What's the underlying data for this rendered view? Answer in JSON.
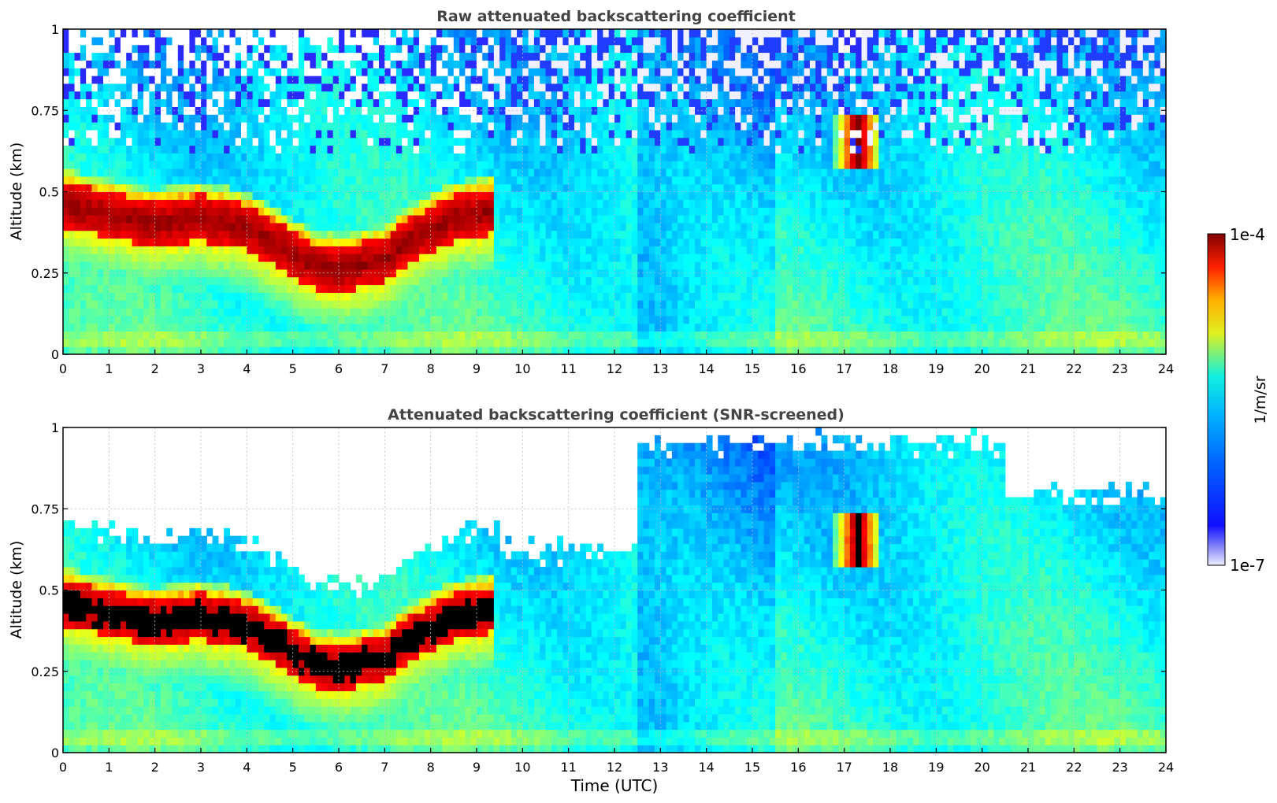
{
  "chart_data": [
    {
      "type": "heatmap",
      "title": "Raw attenuated backscattering coefficient",
      "xlabel": "",
      "ylabel": "Altitude (km)",
      "xlim": [
        0,
        24
      ],
      "ylim": [
        0,
        1
      ],
      "xticks": [
        "0",
        "1",
        "2",
        "3",
        "4",
        "5",
        "6",
        "7",
        "8",
        "9",
        "10",
        "11",
        "12",
        "13",
        "14",
        "15",
        "16",
        "17",
        "18",
        "19",
        "20",
        "21",
        "22",
        "23",
        "24"
      ],
      "yticks": [
        "0",
        "0.25",
        "0.5",
        "0.75",
        "1"
      ],
      "grid": true,
      "features": {
        "boundary_layer_top_km": [
          [
            0,
            0.53
          ],
          [
            1,
            0.5
          ],
          [
            2,
            0.47
          ],
          [
            3,
            0.49
          ],
          [
            4,
            0.46
          ],
          [
            5,
            0.38
          ],
          [
            5.5,
            0.34
          ],
          [
            6,
            0.33
          ],
          [
            7,
            0.36
          ],
          [
            7.5,
            0.42
          ],
          [
            8,
            0.45
          ],
          [
            8.5,
            0.49
          ],
          [
            9,
            0.5
          ],
          [
            9.3,
            0.51
          ]
        ],
        "elevated_layer": {
          "t_start": 16.8,
          "t_end": 17.8,
          "altitude_km": [
            0.62,
            0.74
          ]
        }
      }
    },
    {
      "type": "heatmap",
      "title": "Attenuated backscattering coefficient (SNR-screened)",
      "xlabel": "Time (UTC)",
      "ylabel": "Altitude (km)",
      "xlim": [
        0,
        24
      ],
      "ylim": [
        0,
        1
      ],
      "xticks": [
        "0",
        "1",
        "2",
        "3",
        "4",
        "5",
        "6",
        "7",
        "8",
        "9",
        "10",
        "11",
        "12",
        "13",
        "14",
        "15",
        "16",
        "17",
        "18",
        "19",
        "20",
        "21",
        "22",
        "23",
        "24"
      ],
      "yticks": [
        "0",
        "0.25",
        "0.5",
        "0.75",
        "1"
      ],
      "grid": true
    }
  ],
  "colorbar": {
    "label": "1/m/sr",
    "max_label": "1e-4",
    "min_label": "1e-7",
    "scale": "log",
    "colormap": "jet"
  }
}
